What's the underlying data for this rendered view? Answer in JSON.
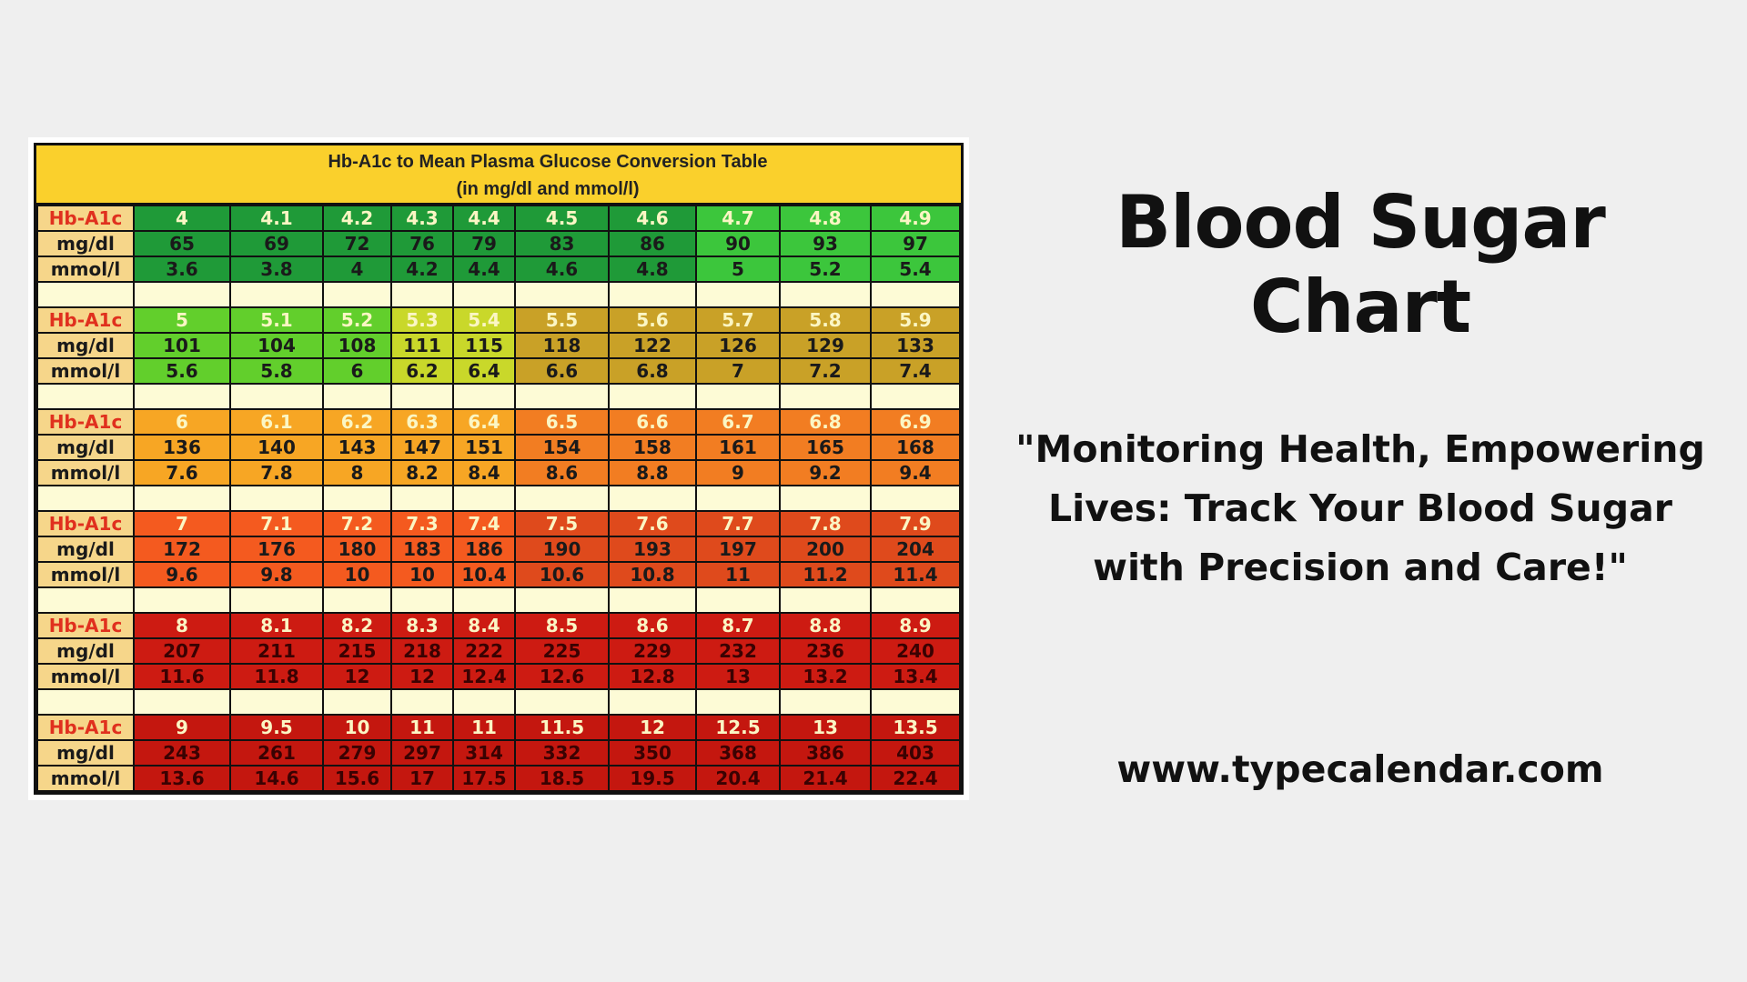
{
  "chart": {
    "title": "Hb-A1c to Mean Plasma Glucose Conversion Table",
    "subtitle": "(in mg/dl and mmol/l)",
    "row_labels": [
      "Hb-A1c",
      "mg/dl",
      "mmol/l"
    ],
    "groups": [
      {
        "hb": [
          "4",
          "4.1",
          "4.2",
          "4.3",
          "4.4",
          "4.5",
          "4.6",
          "4.7",
          "4.8",
          "4.9"
        ],
        "mgdl": [
          "65",
          "69",
          "72",
          "76",
          "79",
          "83",
          "86",
          "90",
          "93",
          "97"
        ],
        "mmol": [
          "3.6",
          "3.8",
          "4",
          "4.2",
          "4.4",
          "4.6",
          "4.8",
          "5",
          "5.2",
          "5.4"
        ],
        "colors": [
          "#1f9a38",
          "#1f9a38",
          "#1f9a38",
          "#1f9a38",
          "#1f9a38",
          "#1f9a38",
          "#1f9a38",
          "#3cc63c",
          "#3cc63c",
          "#3cc63c"
        ]
      },
      {
        "hb": [
          "5",
          "5.1",
          "5.2",
          "5.3",
          "5.4",
          "5.5",
          "5.6",
          "5.7",
          "5.8",
          "5.9"
        ],
        "mgdl": [
          "101",
          "104",
          "108",
          "111",
          "115",
          "118",
          "122",
          "126",
          "129",
          "133"
        ],
        "mmol": [
          "5.6",
          "5.8",
          "6",
          "6.2",
          "6.4",
          "6.6",
          "6.8",
          "7",
          "7.2",
          "7.4"
        ],
        "colors": [
          "#62cf2c",
          "#62cf2c",
          "#62cf2c",
          "#c9d82a",
          "#c9d82a",
          "#c9a127",
          "#c9a127",
          "#c9a127",
          "#c9a127",
          "#c9a127"
        ]
      },
      {
        "hb": [
          "6",
          "6.1",
          "6.2",
          "6.3",
          "6.4",
          "6.5",
          "6.6",
          "6.7",
          "6.8",
          "6.9"
        ],
        "mgdl": [
          "136",
          "140",
          "143",
          "147",
          "151",
          "154",
          "158",
          "161",
          "165",
          "168"
        ],
        "mmol": [
          "7.6",
          "7.8",
          "8",
          "8.2",
          "8.4",
          "8.6",
          "8.8",
          "9",
          "9.2",
          "9.4"
        ],
        "colors": [
          "#f7a624",
          "#f7a624",
          "#f7a624",
          "#f7a624",
          "#f7a624",
          "#f27d22",
          "#f27d22",
          "#f27d22",
          "#f27d22",
          "#f27d22"
        ]
      },
      {
        "hb": [
          "7",
          "7.1",
          "7.2",
          "7.3",
          "7.4",
          "7.5",
          "7.6",
          "7.7",
          "7.8",
          "7.9"
        ],
        "mgdl": [
          "172",
          "176",
          "180",
          "183",
          "186",
          "190",
          "193",
          "197",
          "200",
          "204"
        ],
        "mmol": [
          "9.6",
          "9.8",
          "10",
          "10",
          "10.4",
          "10.6",
          "10.8",
          "11",
          "11.2",
          "11.4"
        ],
        "colors": [
          "#f45a1f",
          "#f45a1f",
          "#f45a1f",
          "#f45a1f",
          "#f45a1f",
          "#df4a1c",
          "#df4a1c",
          "#df4a1c",
          "#df4a1c",
          "#df4a1c"
        ]
      },
      {
        "hb": [
          "8",
          "8.1",
          "8.2",
          "8.3",
          "8.4",
          "8.5",
          "8.6",
          "8.7",
          "8.8",
          "8.9"
        ],
        "mgdl": [
          "207",
          "211",
          "215",
          "218",
          "222",
          "225",
          "229",
          "232",
          "236",
          "240"
        ],
        "mmol": [
          "11.6",
          "11.8",
          "12",
          "12",
          "12.4",
          "12.6",
          "12.8",
          "13",
          "13.2",
          "13.4"
        ],
        "colors": [
          "#cd1b12",
          "#cd1b12",
          "#cd1b12",
          "#cd1b12",
          "#cd1b12",
          "#cd1b12",
          "#cd1b12",
          "#cd1b12",
          "#cd1b12",
          "#cd1b12"
        ]
      },
      {
        "hb": [
          "9",
          "9.5",
          "10",
          "11",
          "11",
          "11.5",
          "12",
          "12.5",
          "13",
          "13.5"
        ],
        "mgdl": [
          "243",
          "261",
          "279",
          "297",
          "314",
          "332",
          "350",
          "368",
          "386",
          "403"
        ],
        "mmol": [
          "13.6",
          "14.6",
          "15.6",
          "17",
          "17.5",
          "18.5",
          "19.5",
          "20.4",
          "21.4",
          "22.4"
        ],
        "colors": [
          "#c4170f",
          "#c4170f",
          "#c4170f",
          "#c4170f",
          "#c4170f",
          "#c4170f",
          "#c4170f",
          "#c4170f",
          "#c4170f",
          "#c4170f"
        ]
      }
    ],
    "colors": {
      "header": "#fad02c",
      "label_cell": "#f6d68a",
      "label_hb_text": "#e0301e",
      "spacer": "#fdfbd6"
    }
  },
  "heading": "Blood Sugar Chart",
  "tagline_lines": [
    "\"Monitoring Health, Empowering",
    "Lives: Track Your Blood Sugar",
    "with Precision and Care!\""
  ],
  "website": "www.typecalendar.com"
}
